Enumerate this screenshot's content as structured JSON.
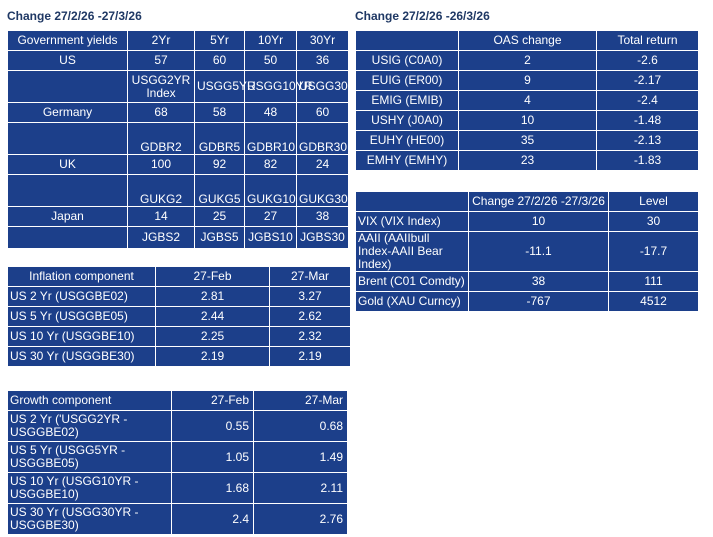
{
  "left_heading": "Change 27/2/26 -27/3/26",
  "right_heading": "Change 27/2/26 -26/3/26",
  "govt": {
    "headers": [
      "Government yields",
      "2Yr",
      "5Yr",
      "10Yr",
      "30Yr"
    ],
    "rows": [
      [
        "US",
        "57",
        "60",
        "50",
        "36"
      ],
      [
        "",
        "USGG2YR Index",
        "USGG5YR",
        "USGG10YR",
        "USGG30YR"
      ],
      [
        "Germany",
        "68",
        "58",
        "48",
        "60"
      ],
      [
        "",
        "GDBR2",
        "GDBR5",
        "GDBR10",
        "GDBR30"
      ],
      [
        "UK",
        "100",
        "92",
        "82",
        "24"
      ],
      [
        "",
        "GUKG2",
        "GUKG5",
        "GUKG10",
        "GUKG30"
      ],
      [
        "Japan",
        "14",
        "25",
        "27",
        "38"
      ],
      [
        "",
        "JGBS2",
        "JGBS5",
        "JGBS10",
        "JGBS30"
      ]
    ]
  },
  "inflation": {
    "headers": [
      "Inflation component",
      "27-Feb",
      "27-Mar"
    ],
    "rows": [
      [
        "US 2 Yr (USGGBE02)",
        "2.81",
        "3.27"
      ],
      [
        "US 5 Yr (USGGBE05)",
        "2.44",
        "2.62"
      ],
      [
        "US 10 Yr (USGGBE10)",
        "2.25",
        "2.32"
      ],
      [
        "US 30 Yr (USGGBE30)",
        "2.19",
        "2.19"
      ]
    ]
  },
  "growth": {
    "headers": [
      "Growth component",
      "27-Feb",
      "27-Mar"
    ],
    "rows": [
      [
        "US 2 Yr ('USGG2YR - USGGBE02)",
        "0.55",
        "0.68"
      ],
      [
        "US 5 Yr (USGG5YR - USGGBE05)",
        "1.05",
        "1.49"
      ],
      [
        "US 10 Yr (USGG10YR - USGGBE10)",
        "1.68",
        "2.11"
      ],
      [
        "US 30 Yr (USGG30YR - USGGBE30)",
        "2.4",
        "2.76"
      ]
    ]
  },
  "oas": {
    "headers": [
      "",
      "OAS change",
      "Total return"
    ],
    "rows": [
      [
        "USIG (C0A0)",
        "2",
        "-2.6"
      ],
      [
        "EUIG (ER00)",
        "9",
        "-2.17"
      ],
      [
        "EMIG (EMIB)",
        "4",
        "-2.4"
      ],
      [
        "USHY (J0A0)",
        "10",
        "-1.48"
      ],
      [
        "EUHY (HE00)",
        "35",
        "-2.13"
      ],
      [
        "EMHY (EMHY)",
        "23",
        "-1.83"
      ]
    ]
  },
  "risk": {
    "headers": [
      "",
      "Change 27/2/26 -27/3/26",
      "Level"
    ],
    "rows": [
      [
        "VIX (VIX Index)",
        "10",
        "30"
      ],
      [
        "AAII (AAIIbull Index-AAII Bear Index)",
        "-11.1",
        "-17.7"
      ],
      [
        "Brent (C01 Comdty)",
        "38",
        "111"
      ],
      [
        "Gold (XAU Curncy)",
        "-767",
        "4512"
      ]
    ]
  }
}
